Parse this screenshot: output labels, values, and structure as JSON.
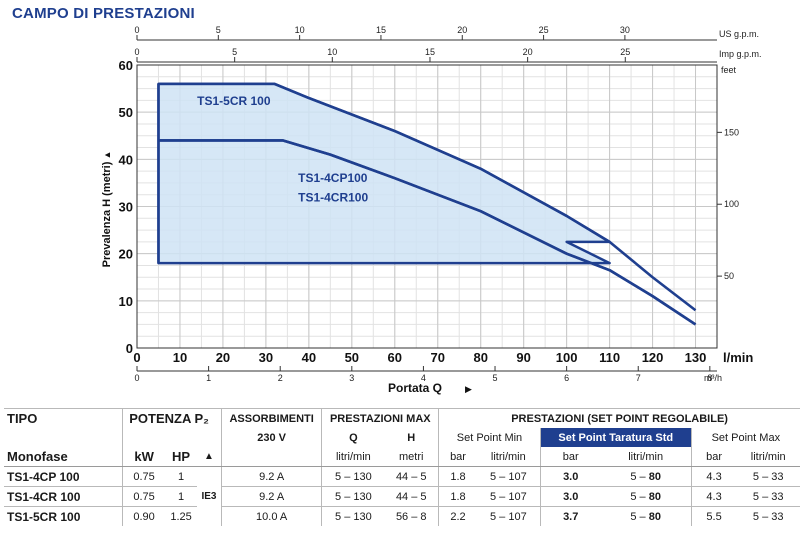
{
  "title": "CAMPO DI PRESTAZIONI",
  "chart_data": {
    "type": "line",
    "ylabel": "Prevalenza H (metri)",
    "ylabel_arrow": "▲",
    "ylim": [
      0,
      60
    ],
    "yticks": [
      0,
      10,
      20,
      30,
      40,
      50,
      60
    ],
    "xlabel": "Portata Q",
    "xlabel_arrow": "▶",
    "xlim": [
      0,
      135
    ],
    "xticks": [
      0,
      10,
      20,
      30,
      40,
      50,
      60,
      70,
      80,
      90,
      100,
      110,
      120,
      130
    ],
    "x_unit": "l/min",
    "secondary_axes": {
      "us_gpm": {
        "label": "US g.p.m.",
        "ticks": [
          0,
          5,
          10,
          15,
          20,
          25,
          30
        ]
      },
      "imp_gpm": {
        "label": "Imp g.p.m.",
        "ticks": [
          0,
          5,
          10,
          15,
          20,
          25
        ]
      },
      "m3h": {
        "label": "m³/h",
        "ticks": [
          0,
          1,
          2,
          3,
          4,
          5,
          6,
          7,
          8
        ]
      },
      "feet": {
        "label": "feet",
        "ticks": [
          50,
          100,
          150
        ]
      }
    },
    "series": [
      {
        "name": "TS1-5CR 100",
        "x": [
          5,
          32,
          40,
          60,
          80,
          100,
          110,
          120,
          130
        ],
        "y": [
          56,
          56,
          53,
          46,
          38,
          28,
          22.5,
          15,
          8
        ]
      },
      {
        "name": "TS1-4CP100",
        "x": [
          5,
          34,
          45,
          60,
          80,
          100,
          110,
          120,
          130
        ],
        "y": [
          44,
          44,
          41,
          36,
          29,
          20,
          16.5,
          11,
          5
        ]
      },
      {
        "name": "TS1-4CR100",
        "x": [
          5,
          34,
          45,
          60,
          80,
          100,
          110,
          120,
          130
        ],
        "y": [
          44,
          44,
          41,
          36,
          29,
          20,
          16.5,
          11,
          5
        ]
      }
    ],
    "regulation_field": {
      "x": [
        5,
        32,
        40,
        60,
        80,
        100,
        110,
        100,
        110,
        5
      ],
      "y": [
        56,
        56,
        53,
        46,
        38,
        28,
        22.5,
        22.5,
        18,
        18
      ]
    },
    "labels": {
      "label1": "TS1-5CR 100",
      "label2": "TS1-4CP100",
      "label3": "TS1-4CR100"
    },
    "grid": true,
    "colors": {
      "curve": "#1f3f8f",
      "fill": "#cfe3f4",
      "grid": "#c8c8c8"
    }
  },
  "table": {
    "h_tipo": "TIPO",
    "h_potenza": "POTENZA P₂",
    "h_assorb": "ASSORBIMENTI",
    "h_assorb_sub": "230 V",
    "h_prest_max": "PRESTAZIONI MAX",
    "h_q": "Q",
    "h_h": "H",
    "h_prest_set": "PRESTAZIONI (SET POINT REGOLABILE)",
    "h_setmin": "Set Point Min",
    "h_setstd": "Set Point Taratura Std",
    "h_setmax": "Set Point Max",
    "h_monofase": "Monofase",
    "h_kw": "kW",
    "h_hp": "HP",
    "h_ie_arrow": "▲",
    "u_lmin": "litri/min",
    "u_m": "metri",
    "u_bar": "bar",
    "ie_class": "IE3",
    "rows": [
      {
        "model": "TS1-4CP 100",
        "kw": "0.75",
        "hp": "1",
        "amp": "9.2 A",
        "q": "5 – 130",
        "h": "44 – 5",
        "min_bar": "1.8",
        "min_q": "5 – 107",
        "std_bar": "3.0",
        "std_q_a": "5 – ",
        "std_q_b": "80",
        "max_bar": "4.3",
        "max_q": "5 – 33"
      },
      {
        "model": "TS1-4CR 100",
        "kw": "0.75",
        "hp": "1",
        "amp": "9.2 A",
        "q": "5 – 130",
        "h": "44 – 5",
        "min_bar": "1.8",
        "min_q": "5 – 107",
        "std_bar": "3.0",
        "std_q_a": "5 – ",
        "std_q_b": "80",
        "max_bar": "4.3",
        "max_q": "5 – 33"
      },
      {
        "model": "TS1-5CR 100",
        "kw": "0.90",
        "hp": "1.25",
        "amp": "10.0 A",
        "q": "5 – 130",
        "h": "56 – 8",
        "min_bar": "2.2",
        "min_q": "5 – 107",
        "std_bar": "3.7",
        "std_q_a": "5 – ",
        "std_q_b": "80",
        "max_bar": "5.5",
        "max_q": "5 – 33"
      }
    ]
  }
}
